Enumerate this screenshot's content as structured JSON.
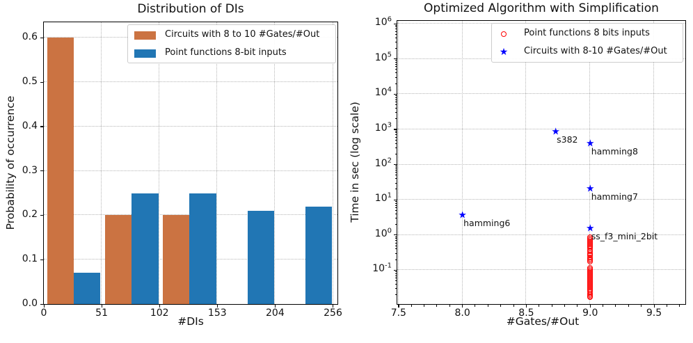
{
  "figure": {
    "background": "#ffffff"
  },
  "colors": {
    "hist_orange": "#cb7342",
    "hist_blue": "#2176b4",
    "scatter_red": "#ff0000",
    "scatter_blue": "#0000ff",
    "grid": "#b5b5b5"
  },
  "chart_data": [
    {
      "type": "bar",
      "title": "Distribution of DIs",
      "xlabel": "#DIs",
      "ylabel": "Probability of occurrence",
      "xlim": [
        0,
        260
      ],
      "ylim": [
        0,
        0.635
      ],
      "grid": true,
      "legend_position": "upper right",
      "x_ticks": [
        {
          "v": 0,
          "label": "0"
        },
        {
          "v": 51.2,
          "label": "51"
        },
        {
          "v": 102.4,
          "label": "102"
        },
        {
          "v": 153.6,
          "label": "153"
        },
        {
          "v": 204.8,
          "label": "204"
        },
        {
          "v": 256,
          "label": "256"
        }
      ],
      "y_ticks": [
        {
          "v": 0,
          "label": "0.0"
        },
        {
          "v": 0.1,
          "label": "0.1"
        },
        {
          "v": 0.2,
          "label": "0.2"
        },
        {
          "v": 0.3,
          "label": "0.3"
        },
        {
          "v": 0.4,
          "label": "0.4"
        },
        {
          "v": 0.5,
          "label": "0.5"
        },
        {
          "v": 0.6,
          "label": "0.6"
        }
      ],
      "bin_edges": [
        0,
        51.2,
        102.4,
        153.6,
        204.8,
        256
      ],
      "series": [
        {
          "name": "Circuits with 8 to 10 #Gates/#Out",
          "color": "#cb7342",
          "values": [
            0.6,
            0.2,
            0.2,
            0,
            0
          ]
        },
        {
          "name": "Point functions 8-bit inputs",
          "color": "#2176b4",
          "values": [
            0.07,
            0.25,
            0.25,
            0.21,
            0.22
          ]
        }
      ]
    },
    {
      "type": "scatter",
      "title": "Optimized Algorithm with Simplification",
      "xlabel": "#Gates/#Out",
      "ylabel": "Time in sec (log scale)",
      "yscale": "log",
      "xlim": [
        7.49,
        9.745
      ],
      "ylim_exponents": [
        -1.96,
        6.08
      ],
      "grid": true,
      "legend_position": "upper right",
      "x_ticks": [
        {
          "v": 7.5,
          "label": "7.5"
        },
        {
          "v": 8.0,
          "label": "8.0"
        },
        {
          "v": 8.5,
          "label": "8.5"
        },
        {
          "v": 9.0,
          "label": "9.0"
        },
        {
          "v": 9.5,
          "label": "9.5"
        }
      ],
      "y_ticks": [
        {
          "base": "10",
          "exp": "6"
        },
        {
          "base": "10",
          "exp": "5"
        },
        {
          "base": "10",
          "exp": "4"
        },
        {
          "base": "10",
          "exp": "3"
        },
        {
          "base": "10",
          "exp": "2"
        },
        {
          "base": "10",
          "exp": "1"
        },
        {
          "base": "10",
          "exp": "0"
        },
        {
          "base": "10",
          "exp": "-1"
        }
      ],
      "series": [
        {
          "name": "Point functions 8 bits inputs",
          "marker": "circle",
          "color": "#ff0000",
          "x": 9.0,
          "values": [
            0.85,
            0.78,
            0.71,
            0.65,
            0.59,
            0.54,
            0.49,
            0.45,
            0.41,
            0.37,
            0.34,
            0.31,
            0.28,
            0.26,
            0.23,
            0.21,
            0.195,
            0.178,
            0.117,
            0.107,
            0.098,
            0.089,
            0.081,
            0.074,
            0.068,
            0.062,
            0.056,
            0.051,
            0.047,
            0.043,
            0.039,
            0.036,
            0.032,
            0.03,
            0.027,
            0.025,
            0.022,
            0.02,
            0.0185,
            0.017
          ]
        },
        {
          "name": "Circuits with 8-10 #Gates/#Out",
          "marker": "star",
          "color": "#0000ff",
          "points": [
            {
              "x": 8.73,
              "y": 820,
              "label": "s382"
            },
            {
              "x": 9.0,
              "y": 390,
              "label": "hamming8"
            },
            {
              "x": 9.0,
              "y": 20,
              "label": "hamming7"
            },
            {
              "x": 8.0,
              "y": 3.5,
              "label": "hamming6"
            },
            {
              "x": 9.0,
              "y": 1.5,
              "label": "ss_f3_mini_2bit"
            }
          ]
        }
      ]
    }
  ]
}
